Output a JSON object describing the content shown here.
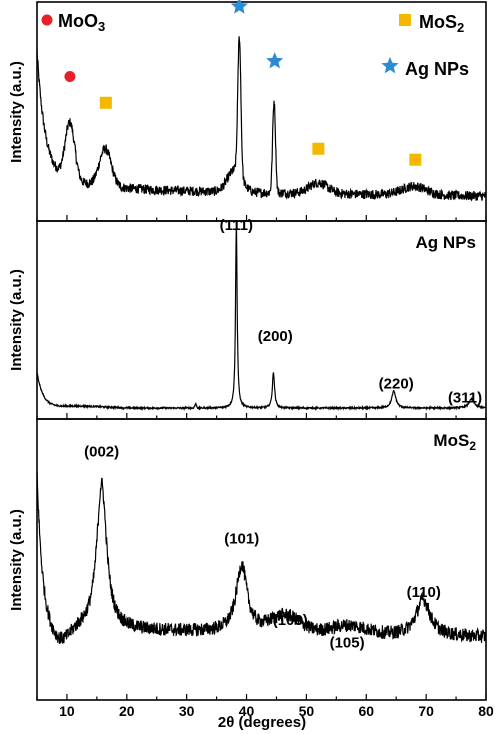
{
  "chart_data": {
    "type": "line",
    "x_axis": {
      "label": "2θ (degrees)",
      "range": [
        5,
        80
      ],
      "ticks": [
        10,
        20,
        30,
        40,
        50,
        60,
        70,
        80
      ]
    },
    "panels": [
      {
        "ylabel": "Intensity (a.u.)",
        "series_color": "#000000",
        "legend": [
          {
            "label": "MoO",
            "sub": "3",
            "marker": "circle",
            "color": "#e8202a"
          },
          {
            "label": "MoS",
            "sub": "2",
            "marker": "square",
            "color": "#f5b800"
          },
          {
            "label": "Ag NPs",
            "sub": "",
            "marker": "star",
            "color": "#2a8cd4"
          }
        ],
        "markers": [
          {
            "x": 10.5,
            "y": 0.66,
            "type": "circle",
            "color": "#e8202a"
          },
          {
            "x": 16.5,
            "y": 0.54,
            "type": "square",
            "color": "#f5b800"
          },
          {
            "x": 38.8,
            "y": 0.98,
            "type": "star",
            "color": "#2a8cd4"
          },
          {
            "x": 44.7,
            "y": 0.73,
            "type": "star",
            "color": "#2a8cd4"
          },
          {
            "x": 52.0,
            "y": 0.33,
            "type": "square",
            "color": "#f5b800"
          },
          {
            "x": 68.2,
            "y": 0.28,
            "type": "square",
            "color": "#f5b800"
          }
        ]
      },
      {
        "ylabel": "Intensity (a.u.)",
        "name": "Ag NPs",
        "peak_labels": [
          {
            "x": 38.3,
            "y": 1.03,
            "text": "(111)"
          },
          {
            "x": 44.8,
            "y": 0.47,
            "text": "(200)"
          },
          {
            "x": 65.0,
            "y": 0.23,
            "text": "(220)"
          },
          {
            "x": 76.5,
            "y": 0.16,
            "text": "(311)"
          }
        ]
      },
      {
        "ylabel": "Intensity (a.u.)",
        "name": "MoS",
        "name_sub": "2",
        "peak_labels": [
          {
            "x": 15.8,
            "y": 0.92,
            "text": "(002)"
          },
          {
            "x": 39.2,
            "y": 0.61,
            "text": "(101)"
          },
          {
            "x": 47.3,
            "y": 0.32,
            "text": "(103)"
          },
          {
            "x": 56.8,
            "y": 0.24,
            "text": "(105)"
          },
          {
            "x": 69.6,
            "y": 0.42,
            "text": "(110)"
          }
        ]
      }
    ]
  }
}
